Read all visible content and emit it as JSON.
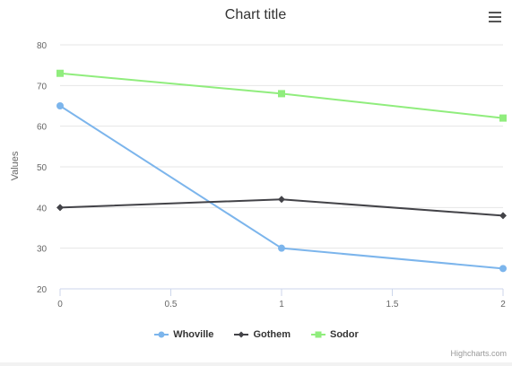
{
  "chart_data": {
    "type": "line",
    "title": "Chart title",
    "xlabel": "",
    "ylabel": "Values",
    "x": [
      0,
      1,
      2
    ],
    "xticks": [
      "0",
      "0.5",
      "1",
      "1.5",
      "2"
    ],
    "xtick_values": [
      0,
      0.5,
      1,
      1.5,
      2
    ],
    "yticks": [
      "20",
      "30",
      "40",
      "50",
      "60",
      "70",
      "80"
    ],
    "ytick_values": [
      20,
      30,
      40,
      50,
      60,
      70,
      80
    ],
    "xlim": [
      0,
      2
    ],
    "ylim": [
      20,
      80
    ],
    "grid": true,
    "legend": "bottom-center",
    "series": [
      {
        "name": "Whoville",
        "values": [
          65,
          30,
          25
        ],
        "color": "#7cb5ec",
        "marker": "circle"
      },
      {
        "name": "Gothem",
        "values": [
          40,
          42,
          38
        ],
        "color": "#434348",
        "marker": "diamond"
      },
      {
        "name": "Sodor",
        "values": [
          73,
          68,
          62
        ],
        "color": "#90ed7d",
        "marker": "square"
      }
    ]
  },
  "credits": "Highcharts.com",
  "menu_icon": "hamburger-menu-icon"
}
